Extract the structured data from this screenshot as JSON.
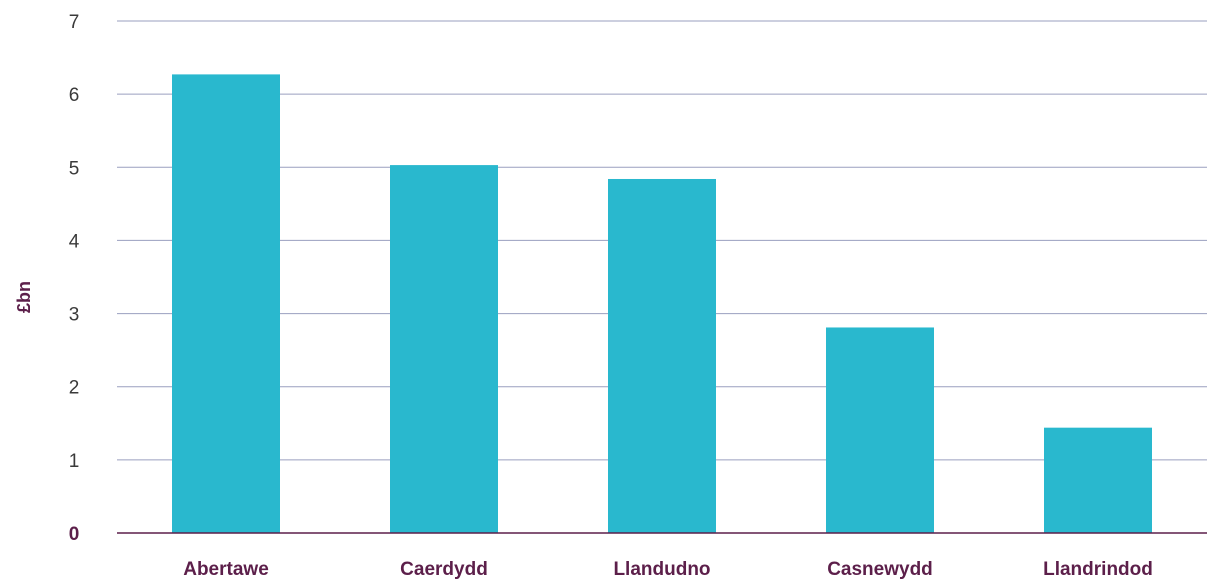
{
  "chart_data": {
    "type": "bar",
    "title": "",
    "xlabel": "",
    "ylabel": "£bn",
    "categories": [
      "Abertawe",
      "Caerdydd",
      "Llandudno",
      "Casnewydd",
      "Llandrindod"
    ],
    "values": [
      6.27,
      5.03,
      4.84,
      2.81,
      1.44
    ],
    "ylim": [
      0,
      7
    ],
    "yticks": [
      "0",
      "1",
      "2",
      "3",
      "4",
      "5",
      "6",
      "7"
    ],
    "grid": true,
    "legend": "none"
  },
  "colors": {
    "bar": "#29b8ce",
    "grid": "#9a9fbf",
    "baseline": "#5c1f4a",
    "tick_text": "#3a3a3a",
    "category_text": "#5c1f4a",
    "axis_title_text": "#5c1f4a",
    "zero_tick_text": "#5c1f4a"
  }
}
